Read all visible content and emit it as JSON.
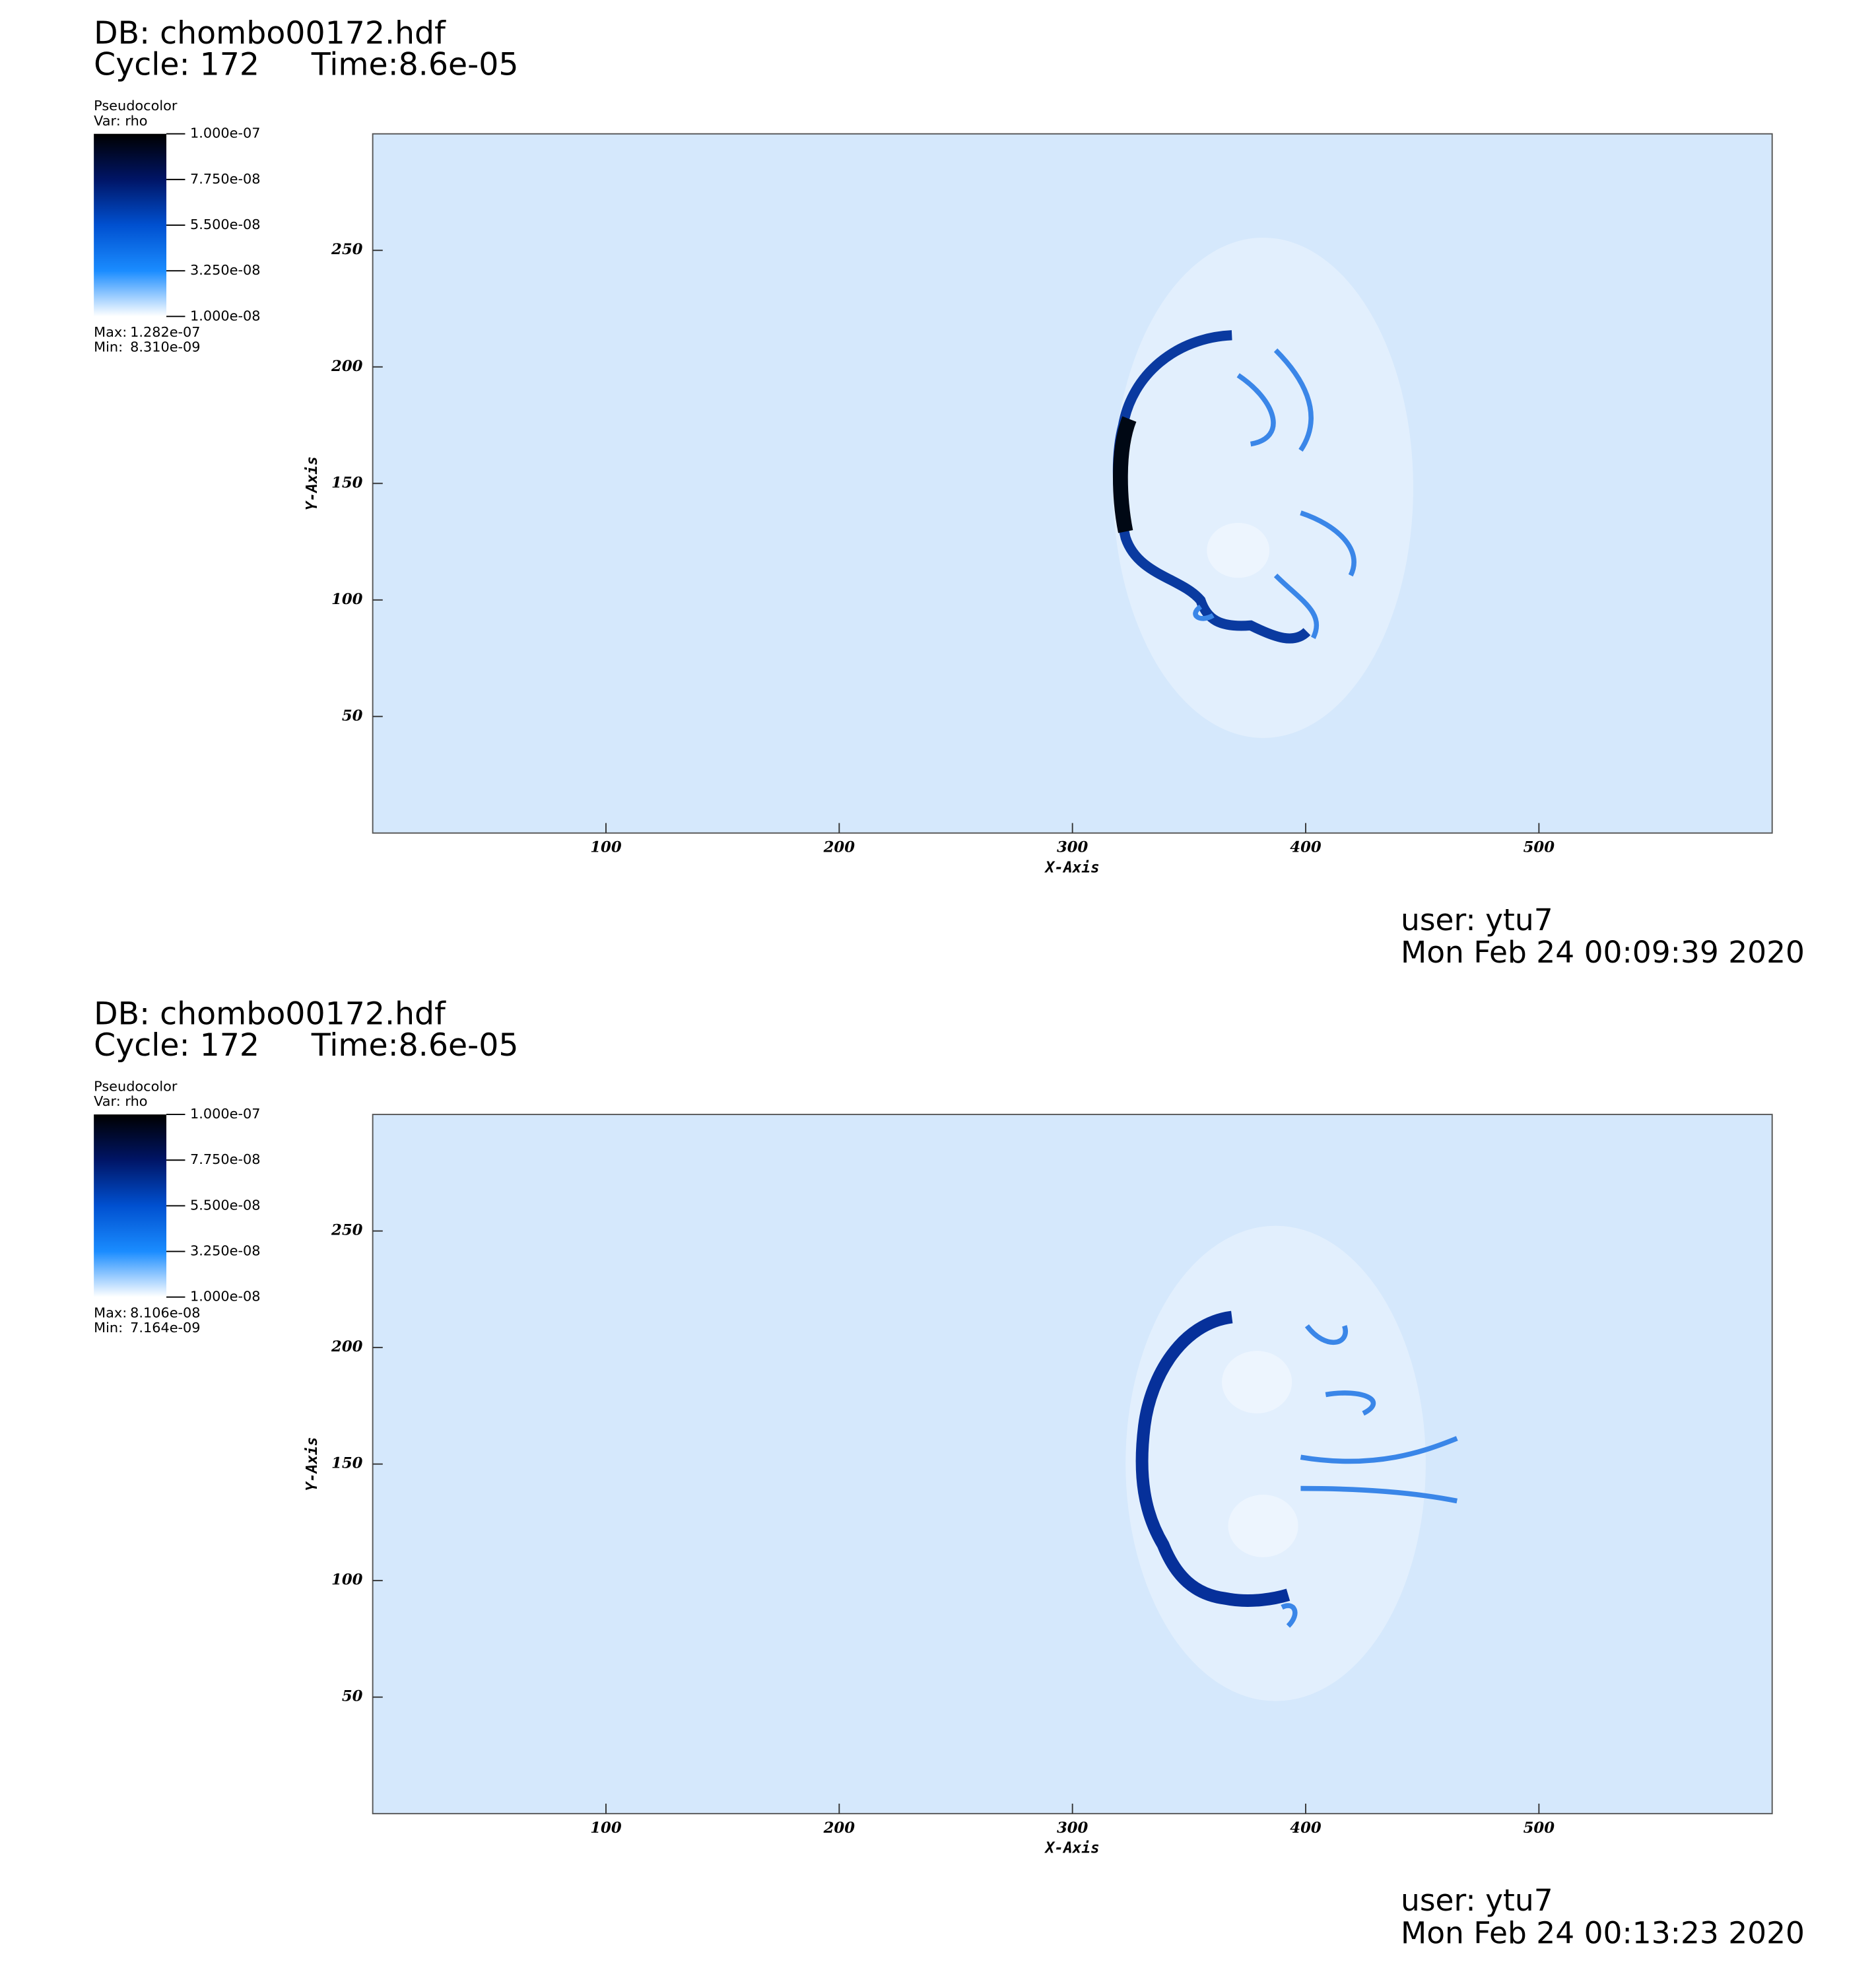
{
  "chart_data": [
    {
      "type": "pseudocolor",
      "db": "DB: chombo00172.hdf",
      "cycle": "Cycle: 172",
      "time": "Time:8.6e-05",
      "legend_title": "Pseudocolor",
      "var": "Var: rho",
      "clim": [
        1e-08,
        1e-07
      ],
      "colorbar_ticks": [
        {
          "value": 1e-07,
          "label": "1.000e-07"
        },
        {
          "value": 7.75e-08,
          "label": "7.750e-08"
        },
        {
          "value": 5.5e-08,
          "label": "5.500e-08"
        },
        {
          "value": 3.25e-08,
          "label": "3.250e-08"
        },
        {
          "value": 1e-08,
          "label": "1.000e-08"
        }
      ],
      "max_label": "Max:",
      "max": {
        "value": 1.282e-07,
        "label": "1.282e-07"
      },
      "min_label": "Min:",
      "min": {
        "value": 8.31e-09,
        "label": "8.310e-09"
      },
      "x_label": "X-Axis",
      "y_label": "Y-Axis",
      "xlim": [
        0,
        600
      ],
      "ylim": [
        0,
        300
      ],
      "xticks": [
        100,
        200,
        300,
        400,
        500
      ],
      "yticks": [
        50,
        100,
        150,
        200,
        250
      ],
      "background": "#d5e8fc",
      "user": "user: ytu7",
      "date": "Mon Feb 24 00:09:39 2020"
    },
    {
      "type": "pseudocolor",
      "db": "DB: chombo00172.hdf",
      "cycle": "Cycle: 172",
      "time": "Time:8.6e-05",
      "legend_title": "Pseudocolor",
      "var": "Var: rho",
      "clim": [
        1e-08,
        1e-07
      ],
      "colorbar_ticks": [
        {
          "value": 1e-07,
          "label": "1.000e-07"
        },
        {
          "value": 7.75e-08,
          "label": "7.750e-08"
        },
        {
          "value": 5.5e-08,
          "label": "5.500e-08"
        },
        {
          "value": 3.25e-08,
          "label": "3.250e-08"
        },
        {
          "value": 1e-08,
          "label": "1.000e-08"
        }
      ],
      "max_label": "Max:",
      "max": {
        "value": 8.106e-08,
        "label": "8.106e-08"
      },
      "min_label": "Min:",
      "min": {
        "value": 7.164e-09,
        "label": "7.164e-09"
      },
      "x_label": "X-Axis",
      "y_label": "Y-Axis",
      "xlim": [
        0,
        600
      ],
      "ylim": [
        0,
        300
      ],
      "xticks": [
        100,
        200,
        300,
        400,
        500
      ],
      "yticks": [
        50,
        100,
        150,
        200,
        250
      ],
      "background": "#d5e8fc",
      "user": "user: ytu7",
      "date": "Mon Feb 24 00:13:23 2020"
    }
  ]
}
